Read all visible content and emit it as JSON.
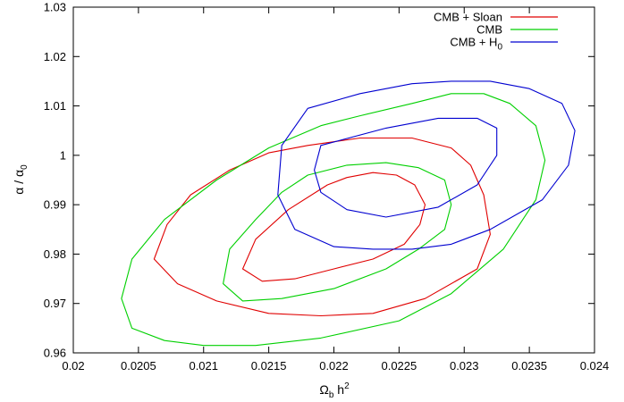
{
  "chart_data": {
    "type": "line",
    "subtype": "contour",
    "title": "",
    "xlabel": "Ω",
    "xlabel_sub": "b",
    "xlabel_rest": " h",
    "xlabel_sup": "2",
    "ylabel": "α / α",
    "ylabel_sub": "0",
    "xlim": [
      0.02,
      0.024
    ],
    "ylim": [
      0.96,
      1.03
    ],
    "xticks": [
      0.02,
      0.0205,
      0.021,
      0.0215,
      0.022,
      0.0225,
      0.023,
      0.0235,
      0.024
    ],
    "xtick_labels": [
      "0.02",
      "0.0205",
      "0.021",
      "0.0215",
      "0.022",
      "0.0225",
      "0.023",
      "0.0235",
      "0.024"
    ],
    "yticks": [
      0.96,
      0.97,
      0.98,
      0.99,
      1.0,
      1.01,
      1.02,
      1.03
    ],
    "ytick_labels": [
      "0.96",
      "0.97",
      "0.98",
      "0.99",
      "1",
      "1.01",
      "1.02",
      "1.03"
    ],
    "grid": false,
    "legend_position": "top-right",
    "series": [
      {
        "name": "CMB + Sloan",
        "color": "#e00000",
        "contours": [
          {
            "level": "inner",
            "x": [
              0.0221,
              0.0223,
              0.02248,
              0.02262,
              0.0227,
              0.02266,
              0.02254,
              0.0223,
              0.022,
              0.0217,
              0.02145,
              0.0213,
              0.0214,
              0.02165,
              0.02195,
              0.0221
            ],
            "y": [
              0.9955,
              0.9965,
              0.996,
              0.994,
              0.99,
              0.986,
              0.982,
              0.979,
              0.977,
              0.975,
              0.9745,
              0.977,
              0.983,
              0.989,
              0.994,
              0.9955
            ]
          },
          {
            "level": "outer",
            "x": [
              0.0218,
              0.0222,
              0.0226,
              0.0229,
              0.02305,
              0.02315,
              0.0232,
              0.0231,
              0.0227,
              0.0223,
              0.0219,
              0.0215,
              0.0211,
              0.0208,
              0.02062,
              0.02072,
              0.0209,
              0.0212,
              0.0215,
              0.0218
            ],
            "y": [
              1.002,
              1.0035,
              1.0035,
              1.0015,
              0.998,
              0.992,
              0.984,
              0.977,
              0.971,
              0.968,
              0.9675,
              0.968,
              0.9705,
              0.974,
              0.979,
              0.986,
              0.992,
              0.997,
              1.0005,
              1.002
            ]
          }
        ]
      },
      {
        "name": "CMB",
        "color": "#00d000",
        "contours": [
          {
            "level": "inner",
            "x": [
              0.0218,
              0.0221,
              0.0224,
              0.02265,
              0.02285,
              0.0229,
              0.02285,
              0.02265,
              0.0224,
              0.022,
              0.0216,
              0.0213,
              0.02115,
              0.0212,
              0.0214,
              0.0216,
              0.0218
            ],
            "y": [
              0.996,
              0.998,
              0.9985,
              0.9975,
              0.995,
              0.99,
              0.985,
              0.981,
              0.977,
              0.973,
              0.971,
              0.9705,
              0.974,
              0.981,
              0.987,
              0.9925,
              0.996
            ]
          },
          {
            "level": "outer",
            "x": [
              0.0222,
              0.0226,
              0.0229,
              0.02315,
              0.02335,
              0.02355,
              0.02362,
              0.02355,
              0.0233,
              0.0229,
              0.0225,
              0.0219,
              0.0214,
              0.021,
              0.0207,
              0.02045,
              0.02037,
              0.02045,
              0.0207,
              0.0211,
              0.0215,
              0.0219,
              0.0222
            ],
            "y": [
              1.008,
              1.0105,
              1.0125,
              1.0125,
              1.0105,
              1.006,
              0.999,
              0.991,
              0.981,
              0.972,
              0.9665,
              0.963,
              0.9615,
              0.9615,
              0.9625,
              0.965,
              0.971,
              0.979,
              0.987,
              0.995,
              1.0015,
              1.006,
              1.008
            ]
          }
        ]
      },
      {
        "name": "CMB + H",
        "name_sub": "0",
        "color": "#0000d0",
        "contours": [
          {
            "level": "inner",
            "x": [
              0.0219,
              0.0224,
              0.0228,
              0.0231,
              0.02325,
              0.02325,
              0.0231,
              0.0228,
              0.0224,
              0.0221,
              0.0219,
              0.02185,
              0.0219
            ],
            "y": [
              1.002,
              1.0055,
              1.0075,
              1.0075,
              1.0055,
              1.0,
              0.994,
              0.9895,
              0.9875,
              0.989,
              0.9925,
              0.997,
              1.002
            ]
          },
          {
            "level": "outer",
            "x": [
              0.0218,
              0.0222,
              0.0226,
              0.0229,
              0.0232,
              0.0235,
              0.02375,
              0.02385,
              0.0238,
              0.0236,
              0.0232,
              0.0229,
              0.0226,
              0.0223,
              0.022,
              0.0217,
              0.02157,
              0.0216,
              0.0218
            ],
            "y": [
              1.0095,
              1.0125,
              1.0145,
              1.015,
              1.015,
              1.0135,
              1.0105,
              1.005,
              0.998,
              0.991,
              0.985,
              0.982,
              0.981,
              0.981,
              0.9815,
              0.985,
              0.992,
              1.002,
              1.0095
            ]
          }
        ]
      }
    ]
  }
}
